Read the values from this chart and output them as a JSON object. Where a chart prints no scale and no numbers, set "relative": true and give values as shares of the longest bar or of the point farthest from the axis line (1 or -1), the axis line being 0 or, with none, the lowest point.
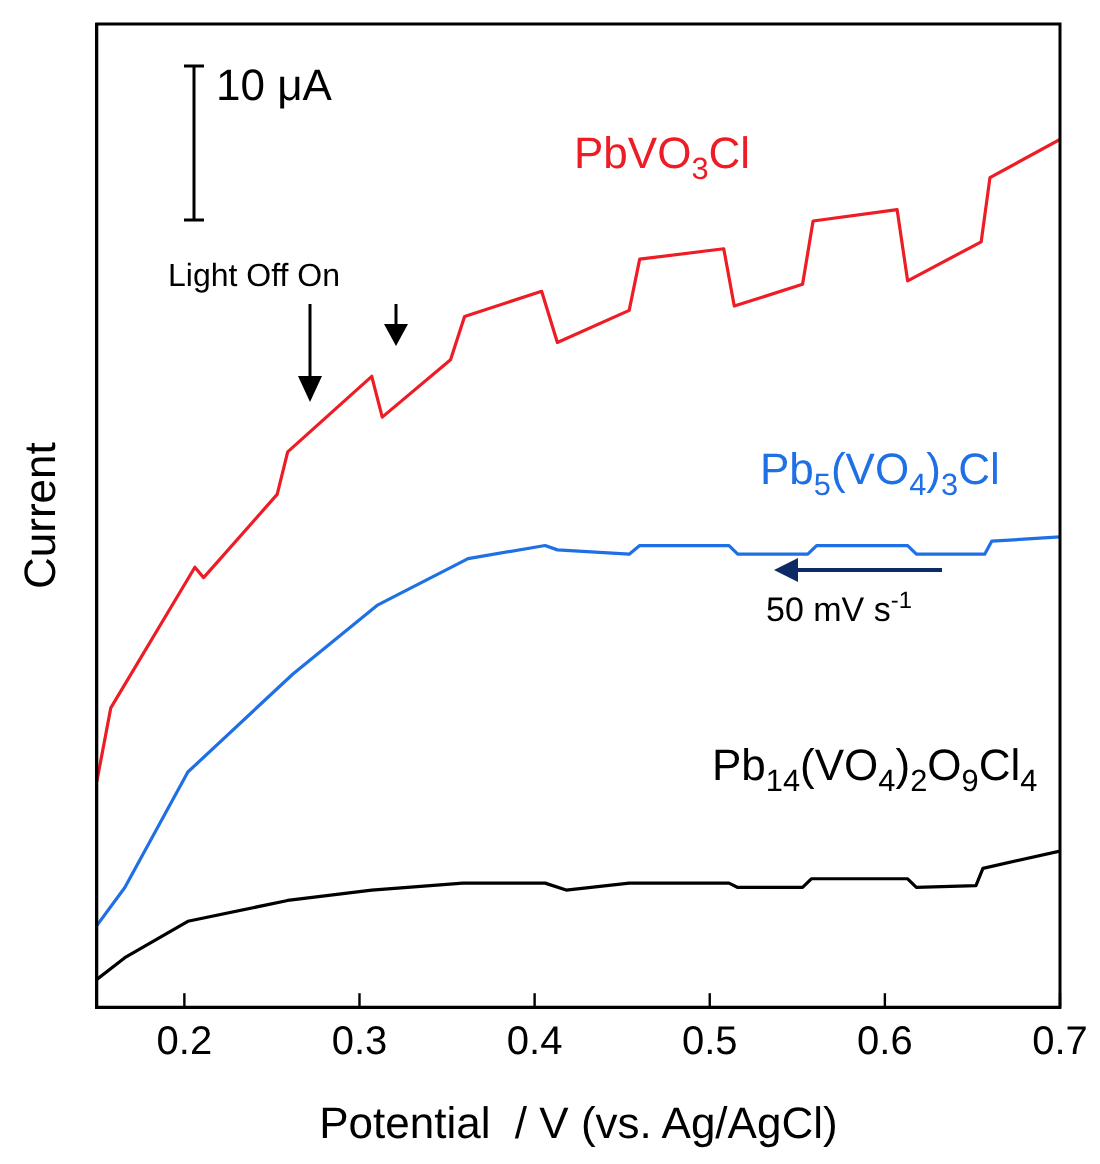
{
  "chart_data": {
    "type": "line",
    "relative": true,
    "xlabel": "Potential  / V (vs. Ag/AgCl)",
    "ylabel": "Current",
    "xlim": [
      0.15,
      0.7
    ],
    "xticks": [
      0.2,
      0.3,
      0.4,
      0.5,
      0.6,
      0.7
    ],
    "grid": false,
    "legend": false,
    "marker": "none",
    "line_style": "solid",
    "annotations": [
      "10 μA",
      "Light Off On",
      "50 mV s$^{-1}$"
    ],
    "series": [
      {
        "name": "PbVO$_{3}$Cl",
        "color": "#ee1c24",
        "x": [
          0.15,
          0.158,
          0.206,
          0.211,
          0.253,
          0.259,
          0.307,
          0.313,
          0.352,
          0.36,
          0.404,
          0.413,
          0.454,
          0.46,
          0.508,
          0.514,
          0.553,
          0.559,
          0.607,
          0.613,
          0.655,
          0.66,
          0.7
        ],
        "values": [
          0.26,
          0.345,
          0.507,
          0.495,
          0.591,
          0.64,
          0.727,
          0.68,
          0.746,
          0.796,
          0.825,
          0.766,
          0.803,
          0.862,
          0.874,
          0.808,
          0.833,
          0.906,
          0.919,
          0.837,
          0.882,
          0.956,
          1.0
        ]
      },
      {
        "name": "Pb$_{5}$(VO$_{4}$)$_{3}$Cl",
        "color": "#1f6fe5",
        "x": [
          0.15,
          0.166,
          0.202,
          0.262,
          0.31,
          0.362,
          0.406,
          0.413,
          0.454,
          0.46,
          0.511,
          0.516,
          0.556,
          0.561,
          0.613,
          0.618,
          0.657,
          0.661,
          0.7
        ],
        "values": [
          0.094,
          0.138,
          0.271,
          0.384,
          0.463,
          0.517,
          0.532,
          0.527,
          0.522,
          0.532,
          0.532,
          0.522,
          0.522,
          0.532,
          0.532,
          0.522,
          0.522,
          0.537,
          0.542
        ]
      },
      {
        "name": "Pb$_{14}$(VO$_{4}$)$_{2}$O$_{9}$Cl$_{4}$",
        "color": "#000000",
        "x": [
          0.15,
          0.166,
          0.202,
          0.259,
          0.307,
          0.359,
          0.406,
          0.418,
          0.454,
          0.511,
          0.516,
          0.553,
          0.558,
          0.613,
          0.618,
          0.652,
          0.656,
          0.7
        ],
        "values": [
          0.032,
          0.057,
          0.099,
          0.123,
          0.135,
          0.143,
          0.143,
          0.135,
          0.143,
          0.143,
          0.138,
          0.138,
          0.148,
          0.148,
          0.138,
          0.14,
          0.16,
          0.18
        ]
      }
    ]
  }
}
